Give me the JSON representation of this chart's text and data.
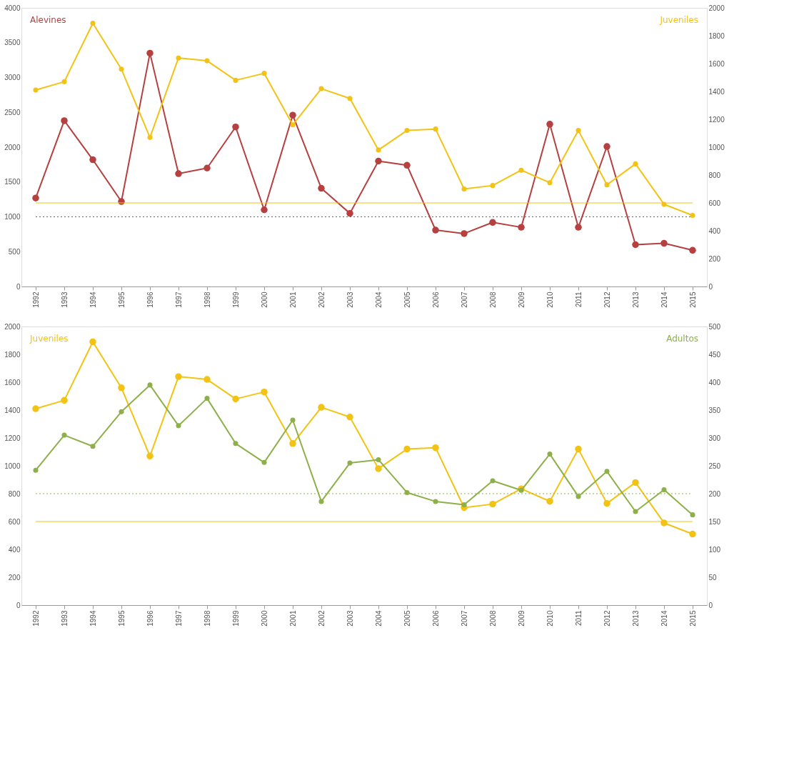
{
  "chart_data": [
    {
      "type": "line",
      "categories": [
        "1992",
        "1993",
        "1994",
        "1995",
        "1996",
        "1997",
        "1998",
        "1999",
        "2000",
        "2001",
        "2002",
        "2003",
        "2004",
        "2005",
        "2006",
        "2007",
        "2008",
        "2009",
        "2010",
        "2011",
        "2012",
        "2013",
        "2014",
        "2015"
      ],
      "series": [
        {
          "name": "Alevines",
          "color": "#b5403f",
          "axis": "y",
          "values": [
            1270,
            2380,
            1820,
            1220,
            3350,
            1620,
            1700,
            2290,
            1100,
            2460,
            1410,
            1050,
            1800,
            1740,
            810,
            760,
            920,
            850,
            2330,
            850,
            2010,
            600,
            620,
            520
          ]
        },
        {
          "name": "Juveniles",
          "color": "#f2c314",
          "axis": "y2",
          "values": [
            1410,
            1470,
            1890,
            1560,
            1070,
            1640,
            1620,
            1480,
            1530,
            1160,
            1420,
            1350,
            980,
            1120,
            1130,
            700,
            725,
            835,
            745,
            1120,
            730,
            880,
            590,
            510
          ]
        }
      ],
      "ylim": [
        0,
        4000
      ],
      "yticks": [
        0,
        500,
        1000,
        1500,
        2000,
        2500,
        3000,
        3500,
        4000
      ],
      "y2lim": [
        0,
        2000
      ],
      "y2ticks": [
        0,
        200,
        400,
        600,
        800,
        1000,
        1200,
        1400,
        1600,
        1800,
        2000
      ],
      "ref_lines": [
        {
          "axis": "y2",
          "value": 600,
          "color": "#f2c314",
          "line_style": "solid"
        },
        {
          "axis": "y",
          "value": 1000,
          "color": "#b5403f",
          "line_style": "dotted"
        }
      ],
      "marker": "circle",
      "grid": false
    },
    {
      "type": "line",
      "categories": [
        "1992",
        "1993",
        "1994",
        "1995",
        "1996",
        "1997",
        "1998",
        "1999",
        "2000",
        "2001",
        "2002",
        "2003",
        "2004",
        "2005",
        "2006",
        "2007",
        "2008",
        "2009",
        "2010",
        "2011",
        "2012",
        "2013",
        "2014",
        "2015"
      ],
      "series": [
        {
          "name": "Juveniles",
          "color": "#f2c314",
          "axis": "y",
          "values": [
            1410,
            1470,
            1890,
            1560,
            1070,
            1640,
            1620,
            1480,
            1530,
            1160,
            1420,
            1350,
            980,
            1120,
            1130,
            700,
            725,
            835,
            745,
            1120,
            730,
            880,
            590,
            510
          ]
        },
        {
          "name": "Adultos",
          "color": "#8db04a",
          "axis": "y2",
          "values": [
            242,
            305,
            285,
            347,
            395,
            322,
            371,
            290,
            256,
            332,
            186,
            255,
            261,
            202,
            186,
            180,
            223,
            206,
            271,
            195,
            240,
            168,
            207,
            162
          ]
        }
      ],
      "ylim": [
        0,
        2000
      ],
      "yticks": [
        0,
        200,
        400,
        600,
        800,
        1000,
        1200,
        1400,
        1600,
        1800,
        2000
      ],
      "y2lim": [
        0,
        500
      ],
      "y2ticks": [
        0,
        50,
        100,
        150,
        200,
        250,
        300,
        350,
        400,
        450,
        500
      ],
      "ref_lines": [
        {
          "axis": "y2",
          "value": 200,
          "color": "#8db04a",
          "line_style": "dotted"
        },
        {
          "axis": "y",
          "value": 600,
          "color": "#f2c314",
          "line_style": "solid"
        }
      ],
      "marker": "circle",
      "grid": false
    }
  ]
}
